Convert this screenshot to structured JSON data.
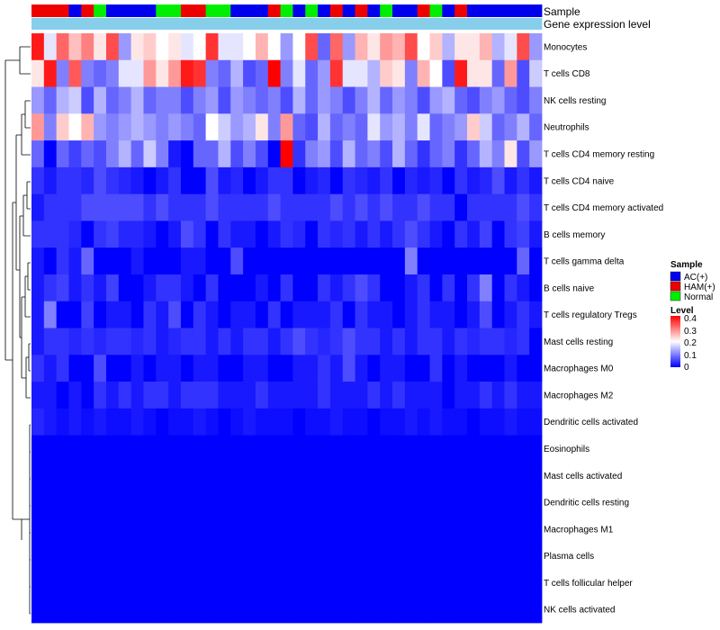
{
  "chart_data": {
    "type": "heatmap",
    "title": "",
    "annotation_labels": {
      "sample": "Sample",
      "expression": "Gene expression level"
    },
    "rows": [
      "Monocytes",
      "T cells CD8",
      "NK cells resting",
      "Neutrophils",
      "T cells CD4 memory resting",
      "T cells CD4 naive",
      "T cells CD4 memory activated",
      "B cells memory",
      "T cells gamma delta",
      "B cells naive",
      "T cells regulatory  Tregs",
      "Mast cells resting",
      "Macrophages M0",
      "Macrophages M2",
      "Dendritic cells activated",
      "Eosinophils",
      "Mast cells activated",
      "Dendritic cells resting",
      "Macrophages M1",
      "Plasma cells",
      "T cells follicular helper",
      "NK cells activated"
    ],
    "sample_groups": [
      "AC(+)",
      "HAM(+)",
      "Normal"
    ],
    "sample_annotation": [
      1,
      1,
      1,
      0,
      1,
      2,
      0,
      0,
      0,
      0,
      2,
      2,
      1,
      1,
      2,
      2,
      0,
      0,
      0,
      1,
      2,
      0,
      2,
      0,
      1,
      0,
      1,
      0,
      2,
      0,
      0,
      1,
      2,
      0,
      1,
      0,
      0,
      0,
      0,
      0,
      0
    ],
    "expression_annotation": [
      0,
      0,
      0,
      0,
      0,
      0,
      0,
      0,
      0,
      0,
      0,
      0,
      0,
      0,
      0,
      0,
      0,
      0,
      0,
      0,
      0,
      0,
      0,
      0,
      0,
      0,
      0,
      0,
      0,
      0,
      0,
      0,
      0,
      0,
      0,
      0,
      0,
      0,
      0,
      0,
      0
    ],
    "values": [
      [
        0.38,
        0.18,
        0.32,
        0.25,
        0.3,
        0.22,
        0.34,
        0.12,
        0.22,
        0.24,
        0.2,
        0.22,
        0.18,
        0.2,
        0.36,
        0.18,
        0.18,
        0.2,
        0.26,
        0.2,
        0.12,
        0.2,
        0.34,
        0.08,
        0.32,
        0.12,
        0.26,
        0.22,
        0.28,
        0.26,
        0.34,
        0.2,
        0.24,
        0.14,
        0.22,
        0.22,
        0.26,
        0.14,
        0.18,
        0.34,
        0.12
      ],
      [
        0.22,
        0.38,
        0.1,
        0.33,
        0.1,
        0.08,
        0.1,
        0.18,
        0.18,
        0.28,
        0.22,
        0.28,
        0.38,
        0.36,
        0.1,
        0.08,
        0.14,
        0.06,
        0.08,
        0.4,
        0.1,
        0.18,
        0.08,
        0.12,
        0.36,
        0.18,
        0.18,
        0.14,
        0.24,
        0.22,
        0.1,
        0.26,
        0.2,
        0.06,
        0.38,
        0.22,
        0.22,
        0.08,
        0.28,
        0.06,
        0.16
      ],
      [
        0.12,
        0.08,
        0.14,
        0.16,
        0.06,
        0.14,
        0.08,
        0.1,
        0.14,
        0.08,
        0.1,
        0.1,
        0.06,
        0.1,
        0.12,
        0.06,
        0.12,
        0.1,
        0.08,
        0.1,
        0.06,
        0.14,
        0.08,
        0.12,
        0.1,
        0.06,
        0.1,
        0.14,
        0.08,
        0.12,
        0.1,
        0.06,
        0.12,
        0.14,
        0.08,
        0.06,
        0.1,
        0.12,
        0.08,
        0.06,
        0.1
      ],
      [
        0.28,
        0.1,
        0.24,
        0.2,
        0.26,
        0.12,
        0.1,
        0.12,
        0.14,
        0.12,
        0.1,
        0.12,
        0.1,
        0.08,
        0.2,
        0.16,
        0.12,
        0.14,
        0.22,
        0.1,
        0.28,
        0.08,
        0.06,
        0.14,
        0.08,
        0.1,
        0.08,
        0.18,
        0.12,
        0.14,
        0.1,
        0.18,
        0.08,
        0.1,
        0.12,
        0.24,
        0.16,
        0.08,
        0.1,
        0.14,
        0.08
      ],
      [
        0.08,
        0.0,
        0.08,
        0.05,
        0.08,
        0.06,
        0.1,
        0.14,
        0.08,
        0.16,
        0.1,
        0.02,
        0.0,
        0.08,
        0.08,
        0.14,
        0.06,
        0.1,
        0.06,
        0.0,
        0.4,
        0.04,
        0.1,
        0.12,
        0.06,
        0.14,
        0.08,
        0.1,
        0.06,
        0.14,
        0.08,
        0.04,
        0.08,
        0.1,
        0.04,
        0.08,
        0.14,
        0.1,
        0.22,
        0.06,
        0.12
      ],
      [
        0.04,
        0.02,
        0.04,
        0.04,
        0.03,
        0.06,
        0.04,
        0.03,
        0.02,
        0.0,
        0.02,
        0.04,
        0.0,
        0.0,
        0.06,
        0.02,
        0.03,
        0.0,
        0.02,
        0.04,
        0.04,
        0.0,
        0.02,
        0.03,
        0.0,
        0.04,
        0.03,
        0.02,
        0.04,
        0.0,
        0.03,
        0.02,
        0.03,
        0.0,
        0.04,
        0.02,
        0.03,
        0.06,
        0.02,
        0.04,
        0.02
      ],
      [
        0.02,
        0.04,
        0.04,
        0.04,
        0.06,
        0.06,
        0.06,
        0.06,
        0.06,
        0.04,
        0.06,
        0.04,
        0.04,
        0.04,
        0.06,
        0.04,
        0.04,
        0.04,
        0.04,
        0.06,
        0.04,
        0.04,
        0.04,
        0.04,
        0.06,
        0.04,
        0.06,
        0.04,
        0.06,
        0.04,
        0.04,
        0.06,
        0.04,
        0.04,
        0.0,
        0.04,
        0.04,
        0.04,
        0.04,
        0.06,
        0.04
      ],
      [
        0.04,
        0.04,
        0.04,
        0.03,
        0.0,
        0.04,
        0.05,
        0.03,
        0.03,
        0.02,
        0.0,
        0.02,
        0.06,
        0.04,
        0.0,
        0.04,
        0.02,
        0.02,
        0.0,
        0.02,
        0.04,
        0.03,
        0.0,
        0.04,
        0.03,
        0.04,
        0.02,
        0.04,
        0.02,
        0.04,
        0.06,
        0.04,
        0.02,
        0.0,
        0.04,
        0.02,
        0.05,
        0.0,
        0.04,
        0.05,
        0.02
      ],
      [
        0.02,
        0.0,
        0.04,
        0.02,
        0.08,
        0.0,
        0.0,
        0.0,
        0.02,
        0.0,
        0.0,
        0.0,
        0.02,
        0.02,
        0.0,
        0.0,
        0.06,
        0.0,
        0.0,
        0.0,
        0.0,
        0.0,
        0.0,
        0.0,
        0.0,
        0.0,
        0.0,
        0.0,
        0.0,
        0.0,
        0.1,
        0.0,
        0.0,
        0.0,
        0.0,
        0.0,
        0.0,
        0.0,
        0.0,
        0.08,
        0.0
      ],
      [
        0.02,
        0.04,
        0.05,
        0.02,
        0.04,
        0.02,
        0.05,
        0.0,
        0.0,
        0.02,
        0.04,
        0.04,
        0.02,
        0.0,
        0.04,
        0.0,
        0.0,
        0.0,
        0.02,
        0.0,
        0.04,
        0.0,
        0.0,
        0.04,
        0.02,
        0.04,
        0.06,
        0.04,
        0.0,
        0.0,
        0.02,
        0.04,
        0.0,
        0.04,
        0.0,
        0.04,
        0.1,
        0.0,
        0.04,
        0.02,
        0.0
      ],
      [
        0.02,
        0.1,
        0.0,
        0.0,
        0.05,
        0.0,
        0.02,
        0.02,
        0.0,
        0.04,
        0.02,
        0.06,
        0.0,
        0.04,
        0.02,
        0.0,
        0.02,
        0.02,
        0.0,
        0.04,
        0.0,
        0.02,
        0.02,
        0.02,
        0.04,
        0.0,
        0.04,
        0.02,
        0.02,
        0.0,
        0.02,
        0.04,
        0.02,
        0.02,
        0.0,
        0.02,
        0.06,
        0.0,
        0.02,
        0.04,
        0.02
      ],
      [
        0.02,
        0.04,
        0.04,
        0.03,
        0.04,
        0.03,
        0.04,
        0.04,
        0.03,
        0.04,
        0.02,
        0.03,
        0.04,
        0.04,
        0.02,
        0.04,
        0.02,
        0.04,
        0.04,
        0.02,
        0.04,
        0.06,
        0.04,
        0.03,
        0.04,
        0.06,
        0.04,
        0.04,
        0.02,
        0.04,
        0.02,
        0.04,
        0.04,
        0.02,
        0.04,
        0.03,
        0.04,
        0.04,
        0.03,
        0.04,
        0.0
      ],
      [
        0.04,
        0.02,
        0.04,
        0.0,
        0.0,
        0.06,
        0.0,
        0.0,
        0.02,
        0.0,
        0.02,
        0.02,
        0.0,
        0.02,
        0.02,
        0.0,
        0.0,
        0.02,
        0.02,
        0.0,
        0.0,
        0.02,
        0.02,
        0.04,
        0.02,
        0.06,
        0.02,
        0.0,
        0.02,
        0.02,
        0.0,
        0.0,
        0.04,
        0.0,
        0.02,
        0.0,
        0.0,
        0.0,
        0.02,
        0.0,
        0.0
      ],
      [
        0.02,
        0.02,
        0.0,
        0.02,
        0.0,
        0.04,
        0.02,
        0.04,
        0.02,
        0.04,
        0.04,
        0.02,
        0.04,
        0.04,
        0.04,
        0.02,
        0.02,
        0.02,
        0.04,
        0.02,
        0.02,
        0.02,
        0.02,
        0.04,
        0.02,
        0.02,
        0.02,
        0.04,
        0.02,
        0.04,
        0.02,
        0.02,
        0.02,
        0.0,
        0.02,
        0.02,
        0.04,
        0.02,
        0.04,
        0.02,
        0.02
      ],
      [
        0.03,
        0.02,
        0.01,
        0.02,
        0.01,
        0.02,
        0.01,
        0.01,
        0.02,
        0.01,
        0.0,
        0.01,
        0.01,
        0.02,
        0.01,
        0.0,
        0.01,
        0.02,
        0.01,
        0.01,
        0.01,
        0.0,
        0.01,
        0.01,
        0.02,
        0.01,
        0.01,
        0.0,
        0.01,
        0.01,
        0.02,
        0.01,
        0.02,
        0.01,
        0.01,
        0.0,
        0.01,
        0.01,
        0.02,
        0.01,
        0.01
      ],
      [
        0,
        0,
        0,
        0,
        0,
        0,
        0,
        0,
        0,
        0,
        0,
        0,
        0,
        0,
        0,
        0,
        0,
        0,
        0,
        0,
        0,
        0,
        0,
        0,
        0,
        0,
        0,
        0,
        0,
        0,
        0,
        0,
        0,
        0,
        0,
        0,
        0,
        0,
        0,
        0,
        0
      ],
      [
        0,
        0,
        0,
        0,
        0,
        0,
        0,
        0,
        0,
        0,
        0,
        0,
        0,
        0,
        0,
        0,
        0,
        0,
        0,
        0,
        0,
        0,
        0,
        0,
        0,
        0,
        0,
        0,
        0,
        0,
        0,
        0,
        0,
        0,
        0,
        0,
        0,
        0,
        0,
        0,
        0
      ],
      [
        0,
        0,
        0,
        0,
        0,
        0,
        0,
        0,
        0,
        0,
        0,
        0,
        0,
        0,
        0,
        0,
        0,
        0,
        0,
        0,
        0,
        0,
        0,
        0,
        0,
        0,
        0,
        0,
        0,
        0,
        0,
        0,
        0,
        0,
        0,
        0,
        0,
        0,
        0,
        0,
        0
      ],
      [
        0,
        0,
        0,
        0,
        0,
        0,
        0,
        0,
        0,
        0,
        0,
        0,
        0,
        0,
        0,
        0,
        0,
        0,
        0,
        0,
        0,
        0,
        0,
        0,
        0,
        0,
        0,
        0,
        0,
        0,
        0,
        0,
        0,
        0,
        0,
        0,
        0,
        0,
        0,
        0,
        0
      ],
      [
        0,
        0,
        0,
        0,
        0,
        0,
        0,
        0,
        0,
        0,
        0,
        0,
        0,
        0,
        0,
        0,
        0,
        0,
        0,
        0,
        0,
        0,
        0,
        0,
        0,
        0,
        0,
        0,
        0,
        0,
        0,
        0,
        0,
        0,
        0,
        0,
        0,
        0,
        0,
        0,
        0
      ],
      [
        0,
        0,
        0,
        0,
        0,
        0,
        0,
        0,
        0,
        0,
        0,
        0,
        0,
        0,
        0,
        0,
        0,
        0,
        0,
        0,
        0,
        0,
        0,
        0,
        0,
        0,
        0,
        0,
        0,
        0,
        0,
        0,
        0,
        0,
        0,
        0,
        0,
        0,
        0,
        0,
        0
      ],
      [
        0,
        0,
        0,
        0,
        0,
        0,
        0,
        0,
        0,
        0,
        0,
        0,
        0,
        0,
        0,
        0,
        0,
        0,
        0,
        0,
        0,
        0,
        0,
        0,
        0,
        0,
        0,
        0,
        0,
        0,
        0,
        0,
        0,
        0,
        0,
        0,
        0,
        0,
        0,
        0,
        0
      ]
    ],
    "value_range": [
      0,
      0.4
    ],
    "color_scale": {
      "low": "#0000ff",
      "mid": "#ffffff",
      "high": "#ff0000",
      "mid_value": 0.2
    },
    "legend": {
      "sample_title": "Sample",
      "level_title": "Level",
      "level_ticks": [
        "0.4",
        "0.3",
        "0.2",
        "0.1",
        "0"
      ],
      "placement": "right"
    }
  },
  "colors": {
    "AC(+)": "#0000ee",
    "HAM(+)": "#ee0000",
    "Normal": "#00ee00",
    "expression_bar": "#87ceeb"
  }
}
